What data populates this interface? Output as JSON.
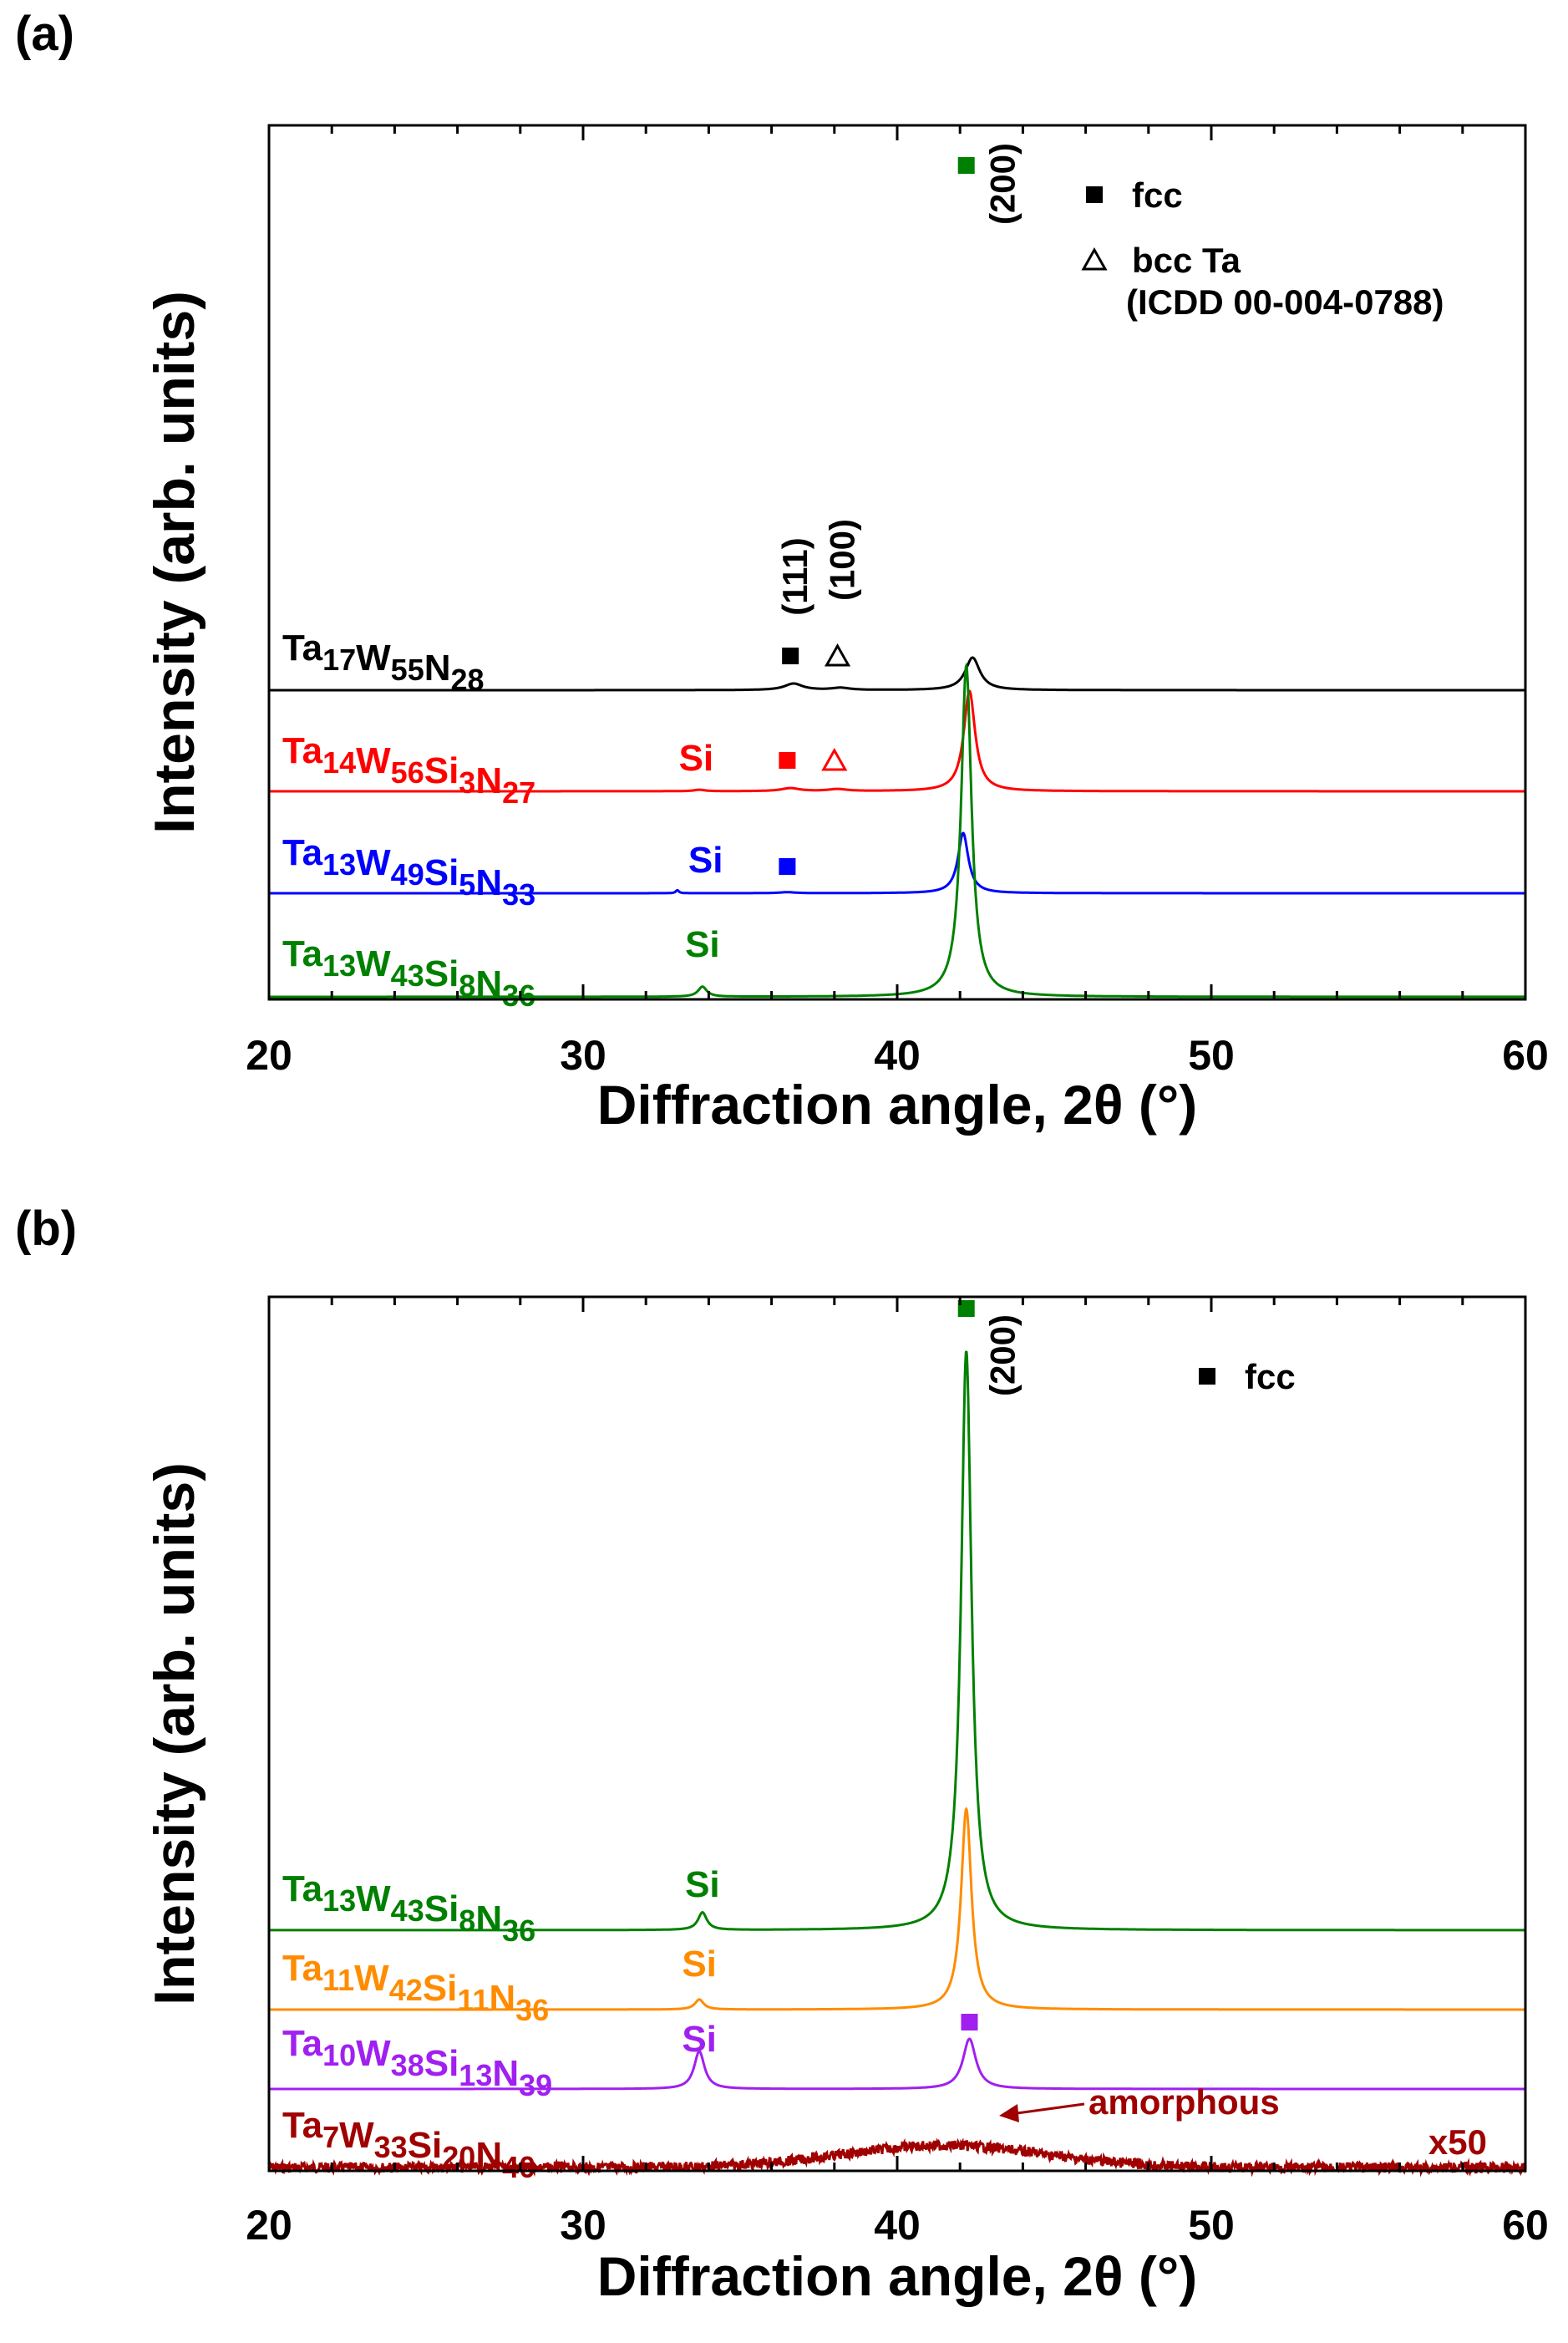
{
  "chart_data": [
    {
      "panel_label": "(a)",
      "type": "line",
      "xlabel": "Diffraction angle, 2θ (°)",
      "ylabel": "Intensity (arb. units)",
      "xlim": [
        20,
        60
      ],
      "xticks": [
        "20",
        "30",
        "40",
        "50",
        "60"
      ],
      "legend": [
        {
          "marker": "filled-square",
          "label": "fcc"
        },
        {
          "marker": "open-triangle",
          "label": "bcc Ta"
        },
        {
          "marker": "",
          "label": "(ICDD 00-004-0788)"
        }
      ],
      "series": [
        {
          "base": "Ta",
          "s1": "17",
          "e2": "W",
          "s2": "55",
          "e3": "N",
          "s3": "28",
          "e4": "",
          "s4": "",
          "color": "#000000",
          "offset": 3,
          "peaks": [
            {
              "x": 36.7,
              "h": 0.03,
              "w": 0.35
            },
            {
              "x": 38.2,
              "h": 0.01,
              "w": 0.35
            },
            {
              "x": 42.4,
              "h": 0.15,
              "w": 0.28
            }
          ],
          "markers": [
            {
              "type": "filled-square",
              "x": 36.6
            },
            {
              "type": "open-triangle",
              "x": 38.1
            }
          ]
        },
        {
          "base": "Ta",
          "s1": "14",
          "e2": "W",
          "s2": "56",
          "e3": "Si",
          "s3": "3",
          "e4": "N",
          "s4": "27",
          "color": "#ff0000",
          "offset": 2,
          "peaks": [
            {
              "x": 33.7,
              "h": 0.015,
              "w": 0.2
            },
            {
              "x": 36.6,
              "h": 0.03,
              "w": 0.35
            },
            {
              "x": 38.1,
              "h": 0.02,
              "w": 0.35
            },
            {
              "x": 42.3,
              "h": 1.0,
              "w": 0.22
            }
          ],
          "markers": [
            {
              "type": "filled-square",
              "x": 36.5
            },
            {
              "type": "open-triangle",
              "x": 38.0
            }
          ],
          "si_label_x": 33.6
        },
        {
          "base": "Ta",
          "s1": "13",
          "e2": "W",
          "s2": "49",
          "e3": "Si",
          "s3": "5",
          "e4": "N",
          "s4": "33",
          "color": "#0000ff",
          "offset": 1,
          "peaks": [
            {
              "x": 33.0,
              "h": 0.03,
              "w": 0.06
            },
            {
              "x": 36.5,
              "h": 0.01,
              "w": 0.3
            },
            {
              "x": 42.1,
              "h": 0.6,
              "w": 0.2
            }
          ],
          "markers": [
            {
              "type": "filled-square",
              "x": 36.5
            }
          ],
          "si_label_x": 33.9
        },
        {
          "base": "Ta",
          "s1": "13",
          "e2": "W",
          "s2": "43",
          "e3": "Si",
          "s3": "8",
          "e4": "N",
          "s4": "36",
          "color": "#008000",
          "offset": 0,
          "peaks": [
            {
              "x": 33.8,
              "h": 0.1,
              "w": 0.17
            },
            {
              "x": 42.2,
              "h": 3.3,
              "w": 0.2
            }
          ],
          "markers": [
            {
              "type": "filled-square",
              "x": 42.2
            }
          ],
          "si_label_x": 33.8
        }
      ],
      "annotations": [
        {
          "text": "Si"
        },
        {
          "text": "(111)"
        },
        {
          "text": "(100)"
        },
        {
          "text": "(200)"
        }
      ]
    },
    {
      "panel_label": "(b)",
      "type": "line",
      "xlabel": "Diffraction angle, 2θ (°)",
      "ylabel": "Intensity (arb. units)",
      "xlim": [
        20,
        60
      ],
      "xticks": [
        "20",
        "30",
        "40",
        "50",
        "60"
      ],
      "legend": [
        {
          "marker": "filled-square",
          "label": "fcc"
        }
      ],
      "series": [
        {
          "base": "Ta",
          "s1": "13",
          "e2": "W",
          "s2": "43",
          "e3": "Si",
          "s3": "8",
          "e4": "N",
          "s4": "36",
          "color": "#008000",
          "offset": 3,
          "peaks": [
            {
              "x": 33.8,
              "h": 0.1,
              "w": 0.17
            },
            {
              "x": 42.2,
              "h": 3.3,
              "w": 0.2
            }
          ],
          "markers": [
            {
              "type": "filled-square",
              "x": 42.2
            }
          ],
          "si_label_x": 33.8
        },
        {
          "base": "Ta",
          "s1": "11",
          "e2": "W",
          "s2": "42",
          "e3": "Si",
          "s3": "11",
          "e4": "N",
          "s4": "36",
          "color": "#ff8c00",
          "offset": 2,
          "peaks": [
            {
              "x": 33.7,
              "h": 0.1,
              "w": 0.17
            },
            {
              "x": 42.2,
              "h": 2.0,
              "w": 0.2
            }
          ],
          "markers": [],
          "si_label_x": 33.7
        },
        {
          "base": "Ta",
          "s1": "10",
          "e2": "W",
          "s2": "38",
          "e3": "Si",
          "s3": "13",
          "e4": "N",
          "s4": "39",
          "color": "#a020f0",
          "offset": 1,
          "peaks": [
            {
              "x": 33.7,
              "h": 0.15,
              "w": 0.2
            },
            {
              "x": 42.3,
              "h": 0.2,
              "w": 0.25
            }
          ],
          "markers": [
            {
              "type": "filled-square",
              "x": 42.3
            }
          ],
          "si_label_x": 33.7
        },
        {
          "base": "Ta",
          "s1": "7",
          "e2": "W",
          "s2": "33",
          "e3": "Si",
          "s3": "20",
          "e4": "N",
          "s4": "40",
          "color": "#a00000",
          "offset": 0,
          "peaks": [
            {
              "x": 41.5,
              "h": 0.22,
              "w": 3.2
            }
          ],
          "markers": [],
          "noise": true
        }
      ],
      "annotations": [
        {
          "text": "Si"
        },
        {
          "text": "(200)"
        },
        {
          "text": "amorphous"
        },
        {
          "text": "x50"
        }
      ]
    }
  ]
}
